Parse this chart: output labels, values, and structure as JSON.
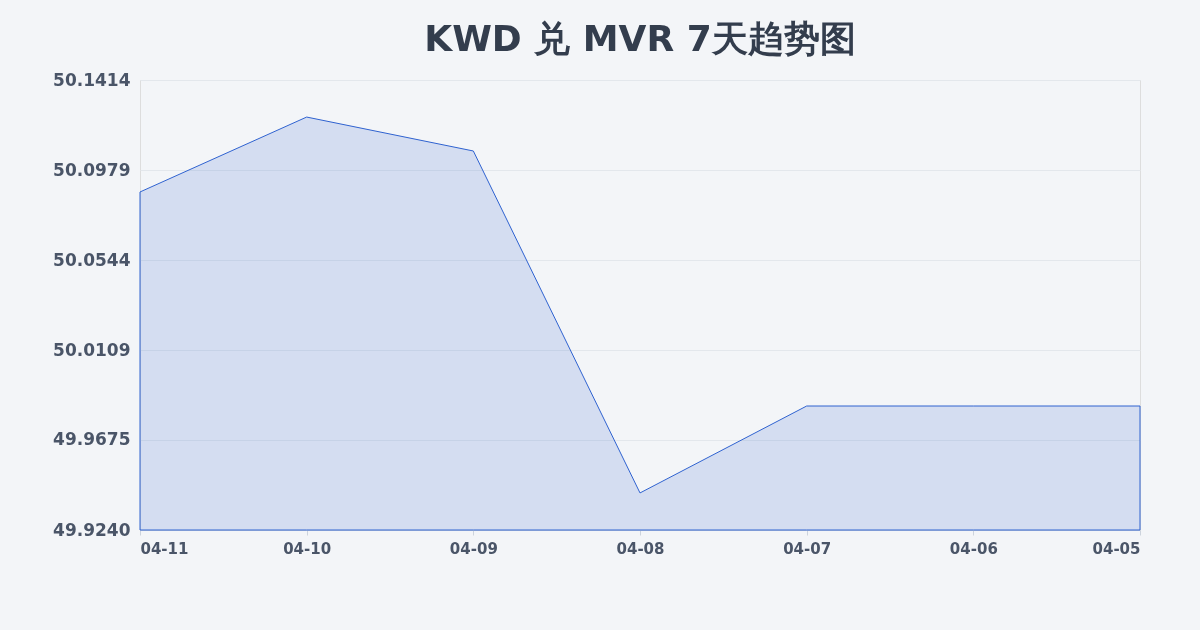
{
  "chart_data": {
    "type": "area",
    "title": "KWD 兑 MVR 7天趋势图",
    "categories": [
      "04-11",
      "04-10",
      "04-09",
      "04-08",
      "04-07",
      "04-06",
      "04-05"
    ],
    "series": [
      {
        "color": "#2f62d0",
        "values": [
          50.0873,
          50.1235,
          50.1071,
          49.9419,
          49.9839,
          49.9839,
          49.9839
        ]
      }
    ],
    "ylim": [
      49.924,
      50.1414
    ],
    "yticks": [
      {
        "value": 49.924,
        "label": "49.9240"
      },
      {
        "value": 49.9675,
        "label": "49.9675"
      },
      {
        "value": 50.0109,
        "label": "50.0109"
      },
      {
        "value": 50.0544,
        "label": "50.0544"
      },
      {
        "value": 50.0979,
        "label": "50.0979"
      },
      {
        "value": 50.1414,
        "label": "50.1414"
      }
    ],
    "grid": "y"
  }
}
